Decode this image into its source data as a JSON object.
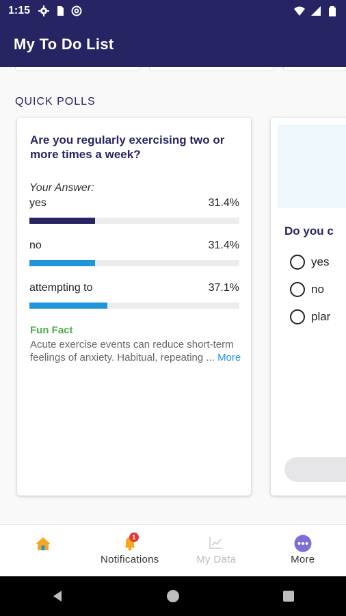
{
  "status_bar": {
    "time": "1:15",
    "icons_left": [
      "gear-icon",
      "sim-icon",
      "at-sign-icon"
    ],
    "icons_right": [
      "wifi-icon",
      "signal-icon",
      "battery-icon"
    ]
  },
  "app_bar": {
    "title": "My To Do List"
  },
  "section": {
    "title": "QUICK POLLS"
  },
  "poll1": {
    "question": "Are you regularly exercising two or more times a week?",
    "your_answer_label": "Your Answer:",
    "options": [
      {
        "label": "yes",
        "percent": "31.4%",
        "value": 31.4,
        "selected": true,
        "color": "#262463"
      },
      {
        "label": "no",
        "percent": "31.4%",
        "value": 31.4,
        "selected": false,
        "color": "#1e96dc"
      },
      {
        "label": "attempting to",
        "percent": "37.1%",
        "value": 37.1,
        "selected": false,
        "color": "#1e96dc"
      }
    ],
    "fun_fact_title": "Fun Fact",
    "fun_fact_text": "Acute exercise events can reduce short-term feelings of anxiety. Habitual, repeating ...",
    "more_label": "More"
  },
  "poll2": {
    "question": "Do you c",
    "options": [
      "yes",
      "no",
      "plar"
    ]
  },
  "bottom_nav": {
    "items": [
      {
        "label": "",
        "icon": "home-icon",
        "color": "#f5a623"
      },
      {
        "label": "Notifications",
        "icon": "bell-icon",
        "badge": "1",
        "color": "#333333"
      },
      {
        "label": "My Data",
        "icon": "chart-icon",
        "color": "#bbbbbb"
      },
      {
        "label": "More",
        "icon": "more-icon",
        "color": "#333333"
      }
    ]
  },
  "colors": {
    "primary": "#262463",
    "accent": "#1e96dc",
    "fun_fact": "#4caf50"
  }
}
